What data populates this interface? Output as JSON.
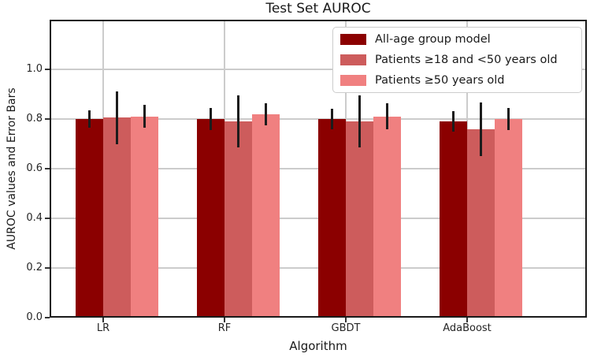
{
  "chart_data": {
    "type": "bar",
    "title": "Test Set AUROC",
    "xlabel": "Algorithm",
    "ylabel": "AUROC values and Error Bars",
    "categories": [
      "LR",
      "RF",
      "GBDT",
      "AdaBoost"
    ],
    "series": [
      {
        "name": "All-age group model",
        "color": "#8B0000",
        "values": [
          0.8,
          0.8,
          0.8,
          0.79
        ],
        "errors": [
          0.036,
          0.045,
          0.042,
          0.042
        ]
      },
      {
        "name": "Patients ≥18 and <50 years old",
        "color": "#CD5C5C",
        "values": [
          0.805,
          0.79,
          0.79,
          0.76
        ],
        "errors": [
          0.107,
          0.105,
          0.105,
          0.108
        ]
      },
      {
        "name": "Patients ≥50 years old",
        "color": "#F08080",
        "values": [
          0.81,
          0.82,
          0.81,
          0.8
        ],
        "errors": [
          0.046,
          0.045,
          0.052,
          0.046
        ]
      }
    ],
    "ylim": [
      0.0,
      1.2
    ],
    "yticks": [
      "0.0",
      "0.2",
      "0.4",
      "0.6",
      "0.8",
      "1.0"
    ],
    "grid": true,
    "legend_position": "upper right"
  }
}
